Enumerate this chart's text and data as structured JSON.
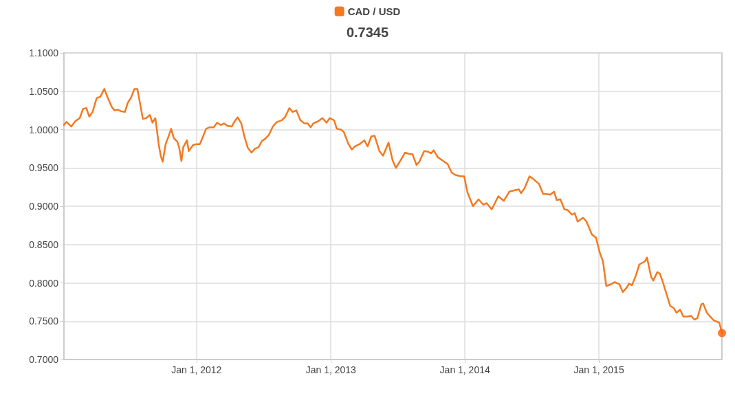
{
  "chart_data": {
    "type": "line",
    "subtitle": "0.7345",
    "legend": "top",
    "grid": true,
    "marker": "none",
    "line_style": "solid",
    "xlim": [
      "2011-01-05",
      "2015-12-02"
    ],
    "xticks": [
      {
        "value": "2012-01-01",
        "label": "Jan 1, 2012"
      },
      {
        "value": "2013-01-01",
        "label": "Jan 1, 2013"
      },
      {
        "value": "2014-01-01",
        "label": "Jan 1, 2014"
      },
      {
        "value": "2015-01-01",
        "label": "Jan 1, 2015"
      }
    ],
    "ylim": [
      0.7,
      1.1
    ],
    "yticks": [
      {
        "value": 0.7,
        "label": "0.7000"
      },
      {
        "value": 0.75,
        "label": "0.7500"
      },
      {
        "value": 0.8,
        "label": "0.8000"
      },
      {
        "value": 0.85,
        "label": "0.8500"
      },
      {
        "value": 0.9,
        "label": "0.9000"
      },
      {
        "value": 0.95,
        "label": "0.9500"
      },
      {
        "value": 1.0,
        "label": "1.0000"
      },
      {
        "value": 1.05,
        "label": "1.0500"
      },
      {
        "value": 1.1,
        "label": "1.1000"
      }
    ],
    "series": [
      {
        "name": "CAD / USD",
        "color": "#f47920",
        "x": [
          "2011-01-05",
          "2011-01-12",
          "2011-01-25",
          "2011-02-05",
          "2011-02-17",
          "2011-02-26",
          "2011-03-07",
          "2011-03-15",
          "2011-03-24",
          "2011-04-04",
          "2011-04-14",
          "2011-04-25",
          "2011-05-04",
          "2011-05-16",
          "2011-05-23",
          "2011-05-31",
          "2011-06-09",
          "2011-06-20",
          "2011-06-28",
          "2011-07-07",
          "2011-07-16",
          "2011-07-24",
          "2011-08-08",
          "2011-08-17",
          "2011-08-27",
          "2011-09-03",
          "2011-09-11",
          "2011-09-20",
          "2011-09-26",
          "2011-10-01",
          "2011-10-09",
          "2011-10-16",
          "2011-10-24",
          "2011-10-31",
          "2011-11-10",
          "2011-11-15",
          "2011-11-21",
          "2011-11-26",
          "2011-12-06",
          "2011-12-11",
          "2011-12-23",
          "2012-01-01",
          "2012-01-10",
          "2012-01-18",
          "2012-01-27",
          "2012-02-06",
          "2012-02-17",
          "2012-02-26",
          "2012-03-07",
          "2012-03-16",
          "2012-03-25",
          "2012-04-06",
          "2012-04-13",
          "2012-04-22",
          "2012-05-02",
          "2012-05-11",
          "2012-05-20",
          "2012-05-30",
          "2012-06-08",
          "2012-06-18",
          "2012-06-27",
          "2012-07-06",
          "2012-07-16",
          "2012-07-27",
          "2012-08-07",
          "2012-08-20",
          "2012-08-30",
          "2012-09-10",
          "2012-09-19",
          "2012-09-29",
          "2012-10-10",
          "2012-10-21",
          "2012-10-30",
          "2012-11-07",
          "2012-11-14",
          "2012-11-28",
          "2012-12-09",
          "2012-12-20",
          "2012-12-29",
          "2013-01-10",
          "2013-01-17",
          "2013-01-28",
          "2013-02-05",
          "2013-02-18",
          "2013-02-27",
          "2013-03-07",
          "2013-03-20",
          "2013-04-02",
          "2013-04-11",
          "2013-04-21",
          "2013-04-30",
          "2013-05-13",
          "2013-05-23",
          "2013-06-07",
          "2013-06-18",
          "2013-06-27",
          "2013-07-10",
          "2013-07-22",
          "2013-08-04",
          "2013-08-11",
          "2013-08-22",
          "2013-08-30",
          "2013-09-12",
          "2013-09-23",
          "2013-10-01",
          "2013-10-08",
          "2013-10-19",
          "2013-11-03",
          "2013-11-15",
          "2013-11-26",
          "2013-12-05",
          "2013-12-20",
          "2013-12-30",
          "2014-01-08",
          "2014-01-23",
          "2014-02-07",
          "2014-02-20",
          "2014-03-01",
          "2014-03-15",
          "2014-04-02",
          "2014-04-17",
          "2014-05-02",
          "2014-05-19",
          "2014-05-28",
          "2014-06-03",
          "2014-06-12",
          "2014-06-26",
          "2014-07-05",
          "2014-07-22",
          "2014-08-02",
          "2014-08-11",
          "2014-08-21",
          "2014-09-01",
          "2014-09-08",
          "2014-09-18",
          "2014-09-29",
          "2014-10-08",
          "2014-10-20",
          "2014-10-27",
          "2014-11-04",
          "2014-11-19",
          "2014-11-28",
          "2014-12-13",
          "2014-12-24",
          "2015-01-03",
          "2015-01-12",
          "2015-01-21",
          "2015-02-02",
          "2015-02-13",
          "2015-02-26",
          "2015-03-07",
          "2015-03-18",
          "2015-03-24",
          "2015-04-01",
          "2015-04-12",
          "2015-04-21",
          "2015-05-06",
          "2015-05-12",
          "2015-05-23",
          "2015-05-29",
          "2015-06-09",
          "2015-06-16",
          "2015-06-24",
          "2015-07-14",
          "2015-07-24",
          "2015-07-31",
          "2015-08-10",
          "2015-08-19",
          "2015-08-30",
          "2015-09-09",
          "2015-09-18",
          "2015-09-26",
          "2015-10-07",
          "2015-10-12",
          "2015-10-22",
          "2015-10-31",
          "2015-11-10",
          "2015-11-25",
          "2015-12-02"
        ],
        "values": [
          1.006,
          1.01,
          1.004,
          1.011,
          1.015,
          1.027,
          1.028,
          1.017,
          1.023,
          1.041,
          1.043,
          1.053,
          1.042,
          1.029,
          1.025,
          1.026,
          1.024,
          1.023,
          1.035,
          1.042,
          1.053,
          1.053,
          1.014,
          1.015,
          1.019,
          1.009,
          1.015,
          0.981,
          0.965,
          0.958,
          0.981,
          0.99,
          1.001,
          0.989,
          0.984,
          0.976,
          0.959,
          0.977,
          0.986,
          0.972,
          0.98,
          0.981,
          0.981,
          0.99,
          1.001,
          1.003,
          1.003,
          1.009,
          1.006,
          1.008,
          1.005,
          1.004,
          1.01,
          1.016,
          1.008,
          0.99,
          0.976,
          0.97,
          0.975,
          0.977,
          0.985,
          0.988,
          0.993,
          1.004,
          1.01,
          1.012,
          1.017,
          1.028,
          1.023,
          1.025,
          1.012,
          1.008,
          1.008,
          1.003,
          1.008,
          1.011,
          1.015,
          1.009,
          1.015,
          1.012,
          1.001,
          1.0,
          0.997,
          0.981,
          0.974,
          0.978,
          0.981,
          0.986,
          0.978,
          0.991,
          0.992,
          0.972,
          0.966,
          0.983,
          0.96,
          0.95,
          0.96,
          0.97,
          0.968,
          0.968,
          0.954,
          0.958,
          0.972,
          0.971,
          0.969,
          0.973,
          0.964,
          0.959,
          0.955,
          0.944,
          0.941,
          0.939,
          0.939,
          0.918,
          0.9,
          0.909,
          0.902,
          0.904,
          0.896,
          0.913,
          0.907,
          0.919,
          0.921,
          0.922,
          0.917,
          0.923,
          0.939,
          0.936,
          0.929,
          0.916,
          0.916,
          0.915,
          0.919,
          0.908,
          0.909,
          0.896,
          0.895,
          0.889,
          0.891,
          0.88,
          0.885,
          0.88,
          0.863,
          0.859,
          0.84,
          0.828,
          0.796,
          0.798,
          0.801,
          0.798,
          0.788,
          0.794,
          0.799,
          0.797,
          0.81,
          0.824,
          0.828,
          0.833,
          0.808,
          0.803,
          0.814,
          0.812,
          0.801,
          0.77,
          0.767,
          0.761,
          0.765,
          0.756,
          0.756,
          0.757,
          0.752,
          0.754,
          0.772,
          0.773,
          0.761,
          0.756,
          0.751,
          0.748,
          0.7345
        ]
      },
      {
        "type": "scatter",
        "color": "#ff6000",
        "marker": "circle",
        "x": [
          "2015-12-02"
        ],
        "values": [
          0.7345
        ]
      }
    ]
  }
}
